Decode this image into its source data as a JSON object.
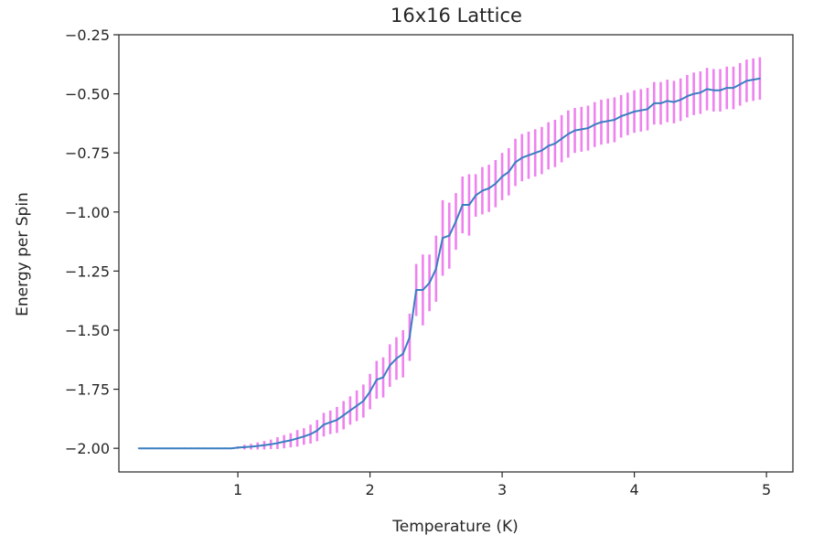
{
  "chart_data": {
    "type": "line",
    "title": "16x16 Lattice",
    "xlabel": "Temperature (K)",
    "ylabel": "Energy per Spin",
    "xlim": [
      0.1,
      5.2
    ],
    "ylim": [
      -2.1,
      -0.25
    ],
    "xticks": [
      1,
      2,
      3,
      4,
      5
    ],
    "yticks": [
      -0.25,
      -0.5,
      -0.75,
      -1.0,
      -1.25,
      -1.5,
      -1.75,
      -2.0
    ],
    "ytick_labels": [
      "−0.25",
      "−0.50",
      "−0.75",
      "−1.00",
      "−1.25",
      "−1.50",
      "−1.75",
      "−2.00"
    ],
    "grid": false,
    "colors": {
      "line": "#3a7fc0",
      "errorbar": "#ee82ee",
      "axes": "#262626"
    },
    "series": [
      {
        "x": [
          0.25,
          0.3,
          0.35,
          0.4,
          0.45,
          0.5,
          0.55,
          0.6,
          0.65,
          0.7,
          0.75,
          0.8,
          0.85,
          0.9,
          0.95,
          1.0,
          1.05,
          1.1,
          1.15,
          1.2,
          1.25,
          1.3,
          1.35,
          1.4,
          1.45,
          1.5,
          1.55,
          1.6,
          1.65,
          1.7,
          1.75,
          1.8,
          1.85,
          1.9,
          1.95,
          2.0,
          2.05,
          2.1,
          2.15,
          2.2,
          2.25,
          2.3,
          2.35,
          2.4,
          2.45,
          2.5,
          2.55,
          2.6,
          2.65,
          2.7,
          2.75,
          2.8,
          2.85,
          2.9,
          2.95,
          3.0,
          3.05,
          3.1,
          3.15,
          3.2,
          3.25,
          3.3,
          3.35,
          3.4,
          3.45,
          3.5,
          3.55,
          3.6,
          3.65,
          3.7,
          3.75,
          3.8,
          3.85,
          3.9,
          3.95,
          4.0,
          4.05,
          4.1,
          4.15,
          4.2,
          4.25,
          4.3,
          4.35,
          4.4,
          4.45,
          4.5,
          4.55,
          4.6,
          4.65,
          4.7,
          4.75,
          4.8,
          4.85,
          4.9,
          4.95
        ],
        "y": [
          -2.0,
          -2.0,
          -2.0,
          -2.0,
          -2.0,
          -2.0,
          -2.0,
          -2.0,
          -2.0,
          -2.0,
          -2.0,
          -2.0,
          -2.0,
          -2.0,
          -2.0,
          -1.997,
          -1.995,
          -1.993,
          -1.99,
          -1.987,
          -1.983,
          -1.978,
          -1.972,
          -1.966,
          -1.958,
          -1.95,
          -1.94,
          -1.925,
          -1.9,
          -1.89,
          -1.88,
          -1.86,
          -1.84,
          -1.82,
          -1.8,
          -1.76,
          -1.71,
          -1.7,
          -1.65,
          -1.62,
          -1.6,
          -1.53,
          -1.33,
          -1.33,
          -1.3,
          -1.24,
          -1.11,
          -1.1,
          -1.04,
          -0.97,
          -0.97,
          -0.93,
          -0.91,
          -0.9,
          -0.88,
          -0.85,
          -0.83,
          -0.79,
          -0.77,
          -0.76,
          -0.75,
          -0.74,
          -0.72,
          -0.71,
          -0.69,
          -0.67,
          -0.655,
          -0.65,
          -0.645,
          -0.63,
          -0.62,
          -0.615,
          -0.61,
          -0.595,
          -0.585,
          -0.575,
          -0.57,
          -0.565,
          -0.54,
          -0.54,
          -0.53,
          -0.535,
          -0.525,
          -0.51,
          -0.5,
          -0.495,
          -0.48,
          -0.485,
          -0.485,
          -0.475,
          -0.475,
          -0.46,
          -0.445,
          -0.44,
          -0.435
        ],
        "err": [
          0,
          0,
          0,
          0,
          0,
          0,
          0,
          0,
          0,
          0,
          0,
          0,
          0,
          0,
          0,
          0.005,
          0.01,
          0.012,
          0.015,
          0.018,
          0.02,
          0.025,
          0.028,
          0.03,
          0.035,
          0.035,
          0.04,
          0.045,
          0.05,
          0.05,
          0.055,
          0.06,
          0.06,
          0.065,
          0.07,
          0.075,
          0.08,
          0.085,
          0.09,
          0.09,
          0.1,
          0.1,
          0.11,
          0.15,
          0.12,
          0.14,
          0.16,
          0.14,
          0.12,
          0.12,
          0.13,
          0.09,
          0.1,
          0.1,
          0.1,
          0.1,
          0.1,
          0.1,
          0.1,
          0.1,
          0.1,
          0.1,
          0.1,
          0.1,
          0.1,
          0.1,
          0.095,
          0.095,
          0.095,
          0.095,
          0.095,
          0.095,
          0.095,
          0.09,
          0.09,
          0.09,
          0.09,
          0.09,
          0.09,
          0.09,
          0.09,
          0.09,
          0.09,
          0.09,
          0.09,
          0.09,
          0.09,
          0.09,
          0.09,
          0.09,
          0.09,
          0.09,
          0.09,
          0.09,
          0.09
        ]
      }
    ]
  }
}
